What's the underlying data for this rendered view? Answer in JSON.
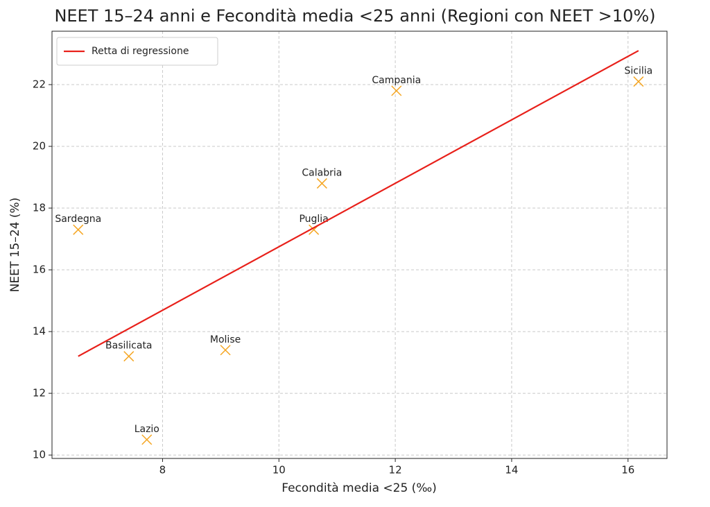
{
  "chart_data": {
    "type": "scatter",
    "title": "NEET 15–24 anni e Fecondità media <25 anni (Regioni con NEET >10%)",
    "x_label": "Fecondità media <25 (‰)",
    "y_label": "NEET 15–24 (%)",
    "points": {
      "color": "#f5a623",
      "labels": [
        "Sardegna",
        "Basilicata",
        "Lazio",
        "Molise",
        "Puglia",
        "Calabria",
        "Campania",
        "Sicilia"
      ],
      "x": [
        6.55,
        7.42,
        7.73,
        9.08,
        10.6,
        10.74,
        12.02,
        16.18
      ],
      "values": [
        17.3,
        13.2,
        10.5,
        13.4,
        17.3,
        18.8,
        21.8,
        22.1
      ]
    },
    "series": [
      {
        "name": "Retta di regressione",
        "color": "#e8201a",
        "x": [
          6.55,
          16.18
        ],
        "values": [
          13.2,
          23.1
        ]
      }
    ],
    "xlim": [
      6.1,
      16.67
    ],
    "ylim": [
      9.89,
      23.73
    ],
    "xticks": [
      8,
      10,
      12,
      14,
      16
    ],
    "yticks": [
      10,
      12,
      14,
      16,
      18,
      20,
      22
    ],
    "grid": true,
    "legend": "upper left"
  }
}
